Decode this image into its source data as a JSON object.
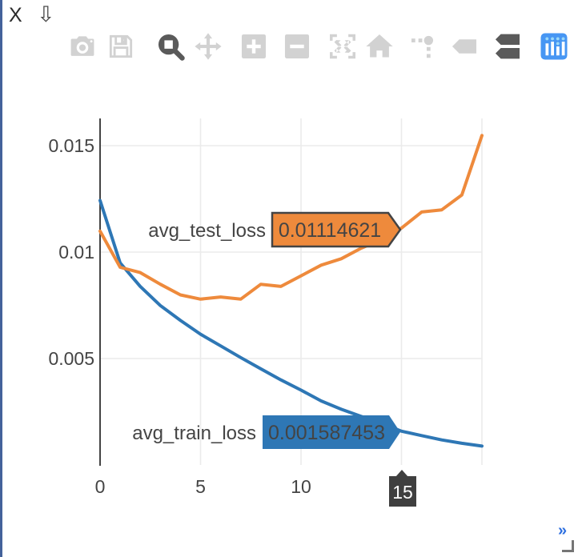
{
  "window": {
    "close": "X",
    "download_arrow": "⇩",
    "expand": "»"
  },
  "toolbar": {
    "icons": [
      "camera-icon",
      "save-icon",
      "zoom-icon",
      "pan-icon",
      "zoom-in-icon",
      "zoom-out-icon",
      "autoscale-icon",
      "home-icon",
      "spikelines-icon",
      "hover-closest-icon",
      "hover-compare-icon",
      "plotly-logo-icon"
    ],
    "active": [
      "zoom-icon",
      "hover-compare-icon"
    ],
    "colors": {
      "inactive": "#d2d2d2",
      "active": "#5a5a5a",
      "logo_bg": "#4796f3",
      "logo_dots": "#9ad8f7"
    }
  },
  "chart_data": {
    "type": "line",
    "title": "",
    "xlabel": "",
    "ylabel": "",
    "grid": true,
    "xlim": [
      0,
      19
    ],
    "ylim": [
      0,
      0.0163
    ],
    "x": [
      0,
      1,
      2,
      3,
      4,
      5,
      6,
      7,
      8,
      9,
      10,
      11,
      12,
      13,
      14,
      15,
      16,
      17,
      18,
      19
    ],
    "series": [
      {
        "name": "avg_train_loss",
        "color": "#2e77b5",
        "values": [
          0.01244,
          0.0095,
          0.0084,
          0.0075,
          0.0068,
          0.00615,
          0.0056,
          0.00505,
          0.00452,
          0.004,
          0.00352,
          0.00301,
          0.00262,
          0.00228,
          0.00196,
          0.001587453,
          0.00138,
          0.00118,
          0.00102,
          0.00089
        ]
      },
      {
        "name": "avg_test_loss",
        "color": "#ee8a3c",
        "values": [
          0.011,
          0.0093,
          0.00905,
          0.0085,
          0.008,
          0.0078,
          0.0079,
          0.0078,
          0.0085,
          0.0084,
          0.0089,
          0.0094,
          0.0097,
          0.0102,
          0.0106,
          0.01114621,
          0.0119,
          0.012,
          0.0127,
          0.0155
        ]
      }
    ],
    "yticks": {
      "labels": [
        "0.015",
        "0.01",
        "0.005"
      ],
      "values": [
        0.015,
        0.01,
        0.005
      ]
    },
    "xticks": {
      "labels": [
        "0",
        "5",
        "10",
        "15"
      ],
      "values": [
        0,
        5,
        10,
        15
      ]
    },
    "hover": {
      "x": "15",
      "test_value": "0.01114621",
      "train_value": "0.001587453",
      "axis_box_color": "#3f3f3f",
      "border_color": "#444444"
    }
  }
}
